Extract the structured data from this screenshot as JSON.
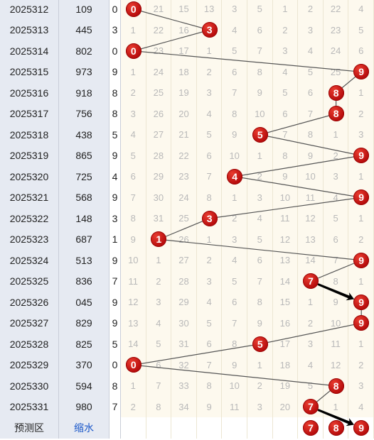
{
  "colors": {
    "ball": "#c8100e",
    "line": "#555555",
    "arrow": "#000000",
    "row_split": "#d04040"
  },
  "rows": [
    {
      "period": "2025312",
      "number": "109",
      "sum": "0",
      "miss": [
        "0",
        "21",
        "15",
        "13",
        "3",
        "5",
        "1",
        "2",
        "22",
        "4"
      ],
      "hit": 0
    },
    {
      "period": "2025313",
      "number": "445",
      "sum": "3",
      "miss": [
        "1",
        "22",
        "16",
        "3",
        "4",
        "6",
        "2",
        "3",
        "23",
        "5"
      ],
      "hit": 3
    },
    {
      "period": "2025314",
      "number": "802",
      "sum": "0",
      "miss": [
        "0",
        "23",
        "17",
        "1",
        "5",
        "7",
        "3",
        "4",
        "24",
        "6"
      ],
      "hit": 0
    },
    {
      "period": "2025315",
      "number": "973",
      "sum": "9",
      "miss": [
        "1",
        "24",
        "18",
        "2",
        "6",
        "8",
        "4",
        "5",
        "25",
        "9"
      ],
      "hit": 9
    },
    {
      "period": "2025316",
      "number": "918",
      "sum": "8",
      "miss": [
        "2",
        "25",
        "19",
        "3",
        "7",
        "9",
        "5",
        "6",
        "8",
        "1"
      ],
      "hit": 8
    },
    {
      "period": "2025317",
      "number": "756",
      "sum": "8",
      "miss": [
        "3",
        "26",
        "20",
        "4",
        "8",
        "10",
        "6",
        "7",
        "8",
        "2"
      ],
      "hit": 8
    },
    {
      "period": "2025318",
      "number": "438",
      "sum": "5",
      "miss": [
        "4",
        "27",
        "21",
        "5",
        "9",
        "5",
        "7",
        "8",
        "1",
        "3"
      ],
      "hit": 5
    },
    {
      "period": "2025319",
      "number": "865",
      "sum": "9",
      "miss": [
        "5",
        "28",
        "22",
        "6",
        "10",
        "1",
        "8",
        "9",
        "2",
        "9"
      ],
      "hit": 9
    },
    {
      "period": "2025320",
      "number": "725",
      "sum": "4",
      "miss": [
        "6",
        "29",
        "23",
        "7",
        "4",
        "2",
        "9",
        "10",
        "3",
        "1"
      ],
      "hit": 4
    },
    {
      "period": "2025321",
      "number": "568",
      "sum": "9",
      "miss": [
        "7",
        "30",
        "24",
        "8",
        "1",
        "3",
        "10",
        "11",
        "4",
        "9"
      ],
      "hit": 9
    },
    {
      "period": "2025322",
      "number": "148",
      "sum": "3",
      "miss": [
        "8",
        "31",
        "25",
        "3",
        "2",
        "4",
        "11",
        "12",
        "5",
        "1"
      ],
      "hit": 3
    },
    {
      "period": "2025323",
      "number": "687",
      "sum": "1",
      "miss": [
        "9",
        "1",
        "26",
        "1",
        "3",
        "5",
        "12",
        "13",
        "6",
        "2"
      ],
      "hit": 1
    },
    {
      "period": "2025324",
      "number": "513",
      "sum": "9",
      "miss": [
        "10",
        "1",
        "27",
        "2",
        "4",
        "6",
        "13",
        "14",
        "7",
        "9"
      ],
      "hit": 9
    },
    {
      "period": "2025325",
      "number": "836",
      "sum": "7",
      "miss": [
        "11",
        "2",
        "28",
        "3",
        "5",
        "7",
        "14",
        "7",
        "8",
        "1"
      ],
      "hit": 7
    },
    {
      "period": "2025326",
      "number": "045",
      "sum": "9",
      "miss": [
        "12",
        "3",
        "29",
        "4",
        "6",
        "8",
        "15",
        "1",
        "9",
        "9"
      ],
      "hit": 9
    },
    {
      "period": "2025327",
      "number": "829",
      "sum": "9",
      "miss": [
        "13",
        "4",
        "30",
        "5",
        "7",
        "9",
        "16",
        "2",
        "10",
        "9"
      ],
      "hit": 9
    },
    {
      "period": "2025328",
      "number": "825",
      "sum": "5",
      "miss": [
        "14",
        "5",
        "31",
        "6",
        "8",
        "5",
        "17",
        "3",
        "11",
        "1"
      ],
      "hit": 5
    },
    {
      "period": "2025329",
      "number": "370",
      "sum": "0",
      "miss": [
        "0",
        "6",
        "32",
        "7",
        "9",
        "1",
        "18",
        "4",
        "12",
        "2"
      ],
      "hit": 0
    },
    {
      "period": "2025330",
      "number": "594",
      "sum": "8",
      "miss": [
        "1",
        "7",
        "33",
        "8",
        "10",
        "2",
        "19",
        "5",
        "8",
        "3"
      ],
      "hit": 8
    },
    {
      "period": "2025331",
      "number": "980",
      "sum": "7",
      "miss": [
        "2",
        "8",
        "34",
        "9",
        "11",
        "3",
        "20",
        "7",
        "1",
        "4"
      ],
      "hit": 7
    }
  ],
  "prediction": {
    "label": "预测区",
    "shrink_label": "缩水",
    "balls": [
      7,
      8,
      9
    ]
  },
  "red_separators_after": [
    4,
    9,
    14,
    19
  ]
}
